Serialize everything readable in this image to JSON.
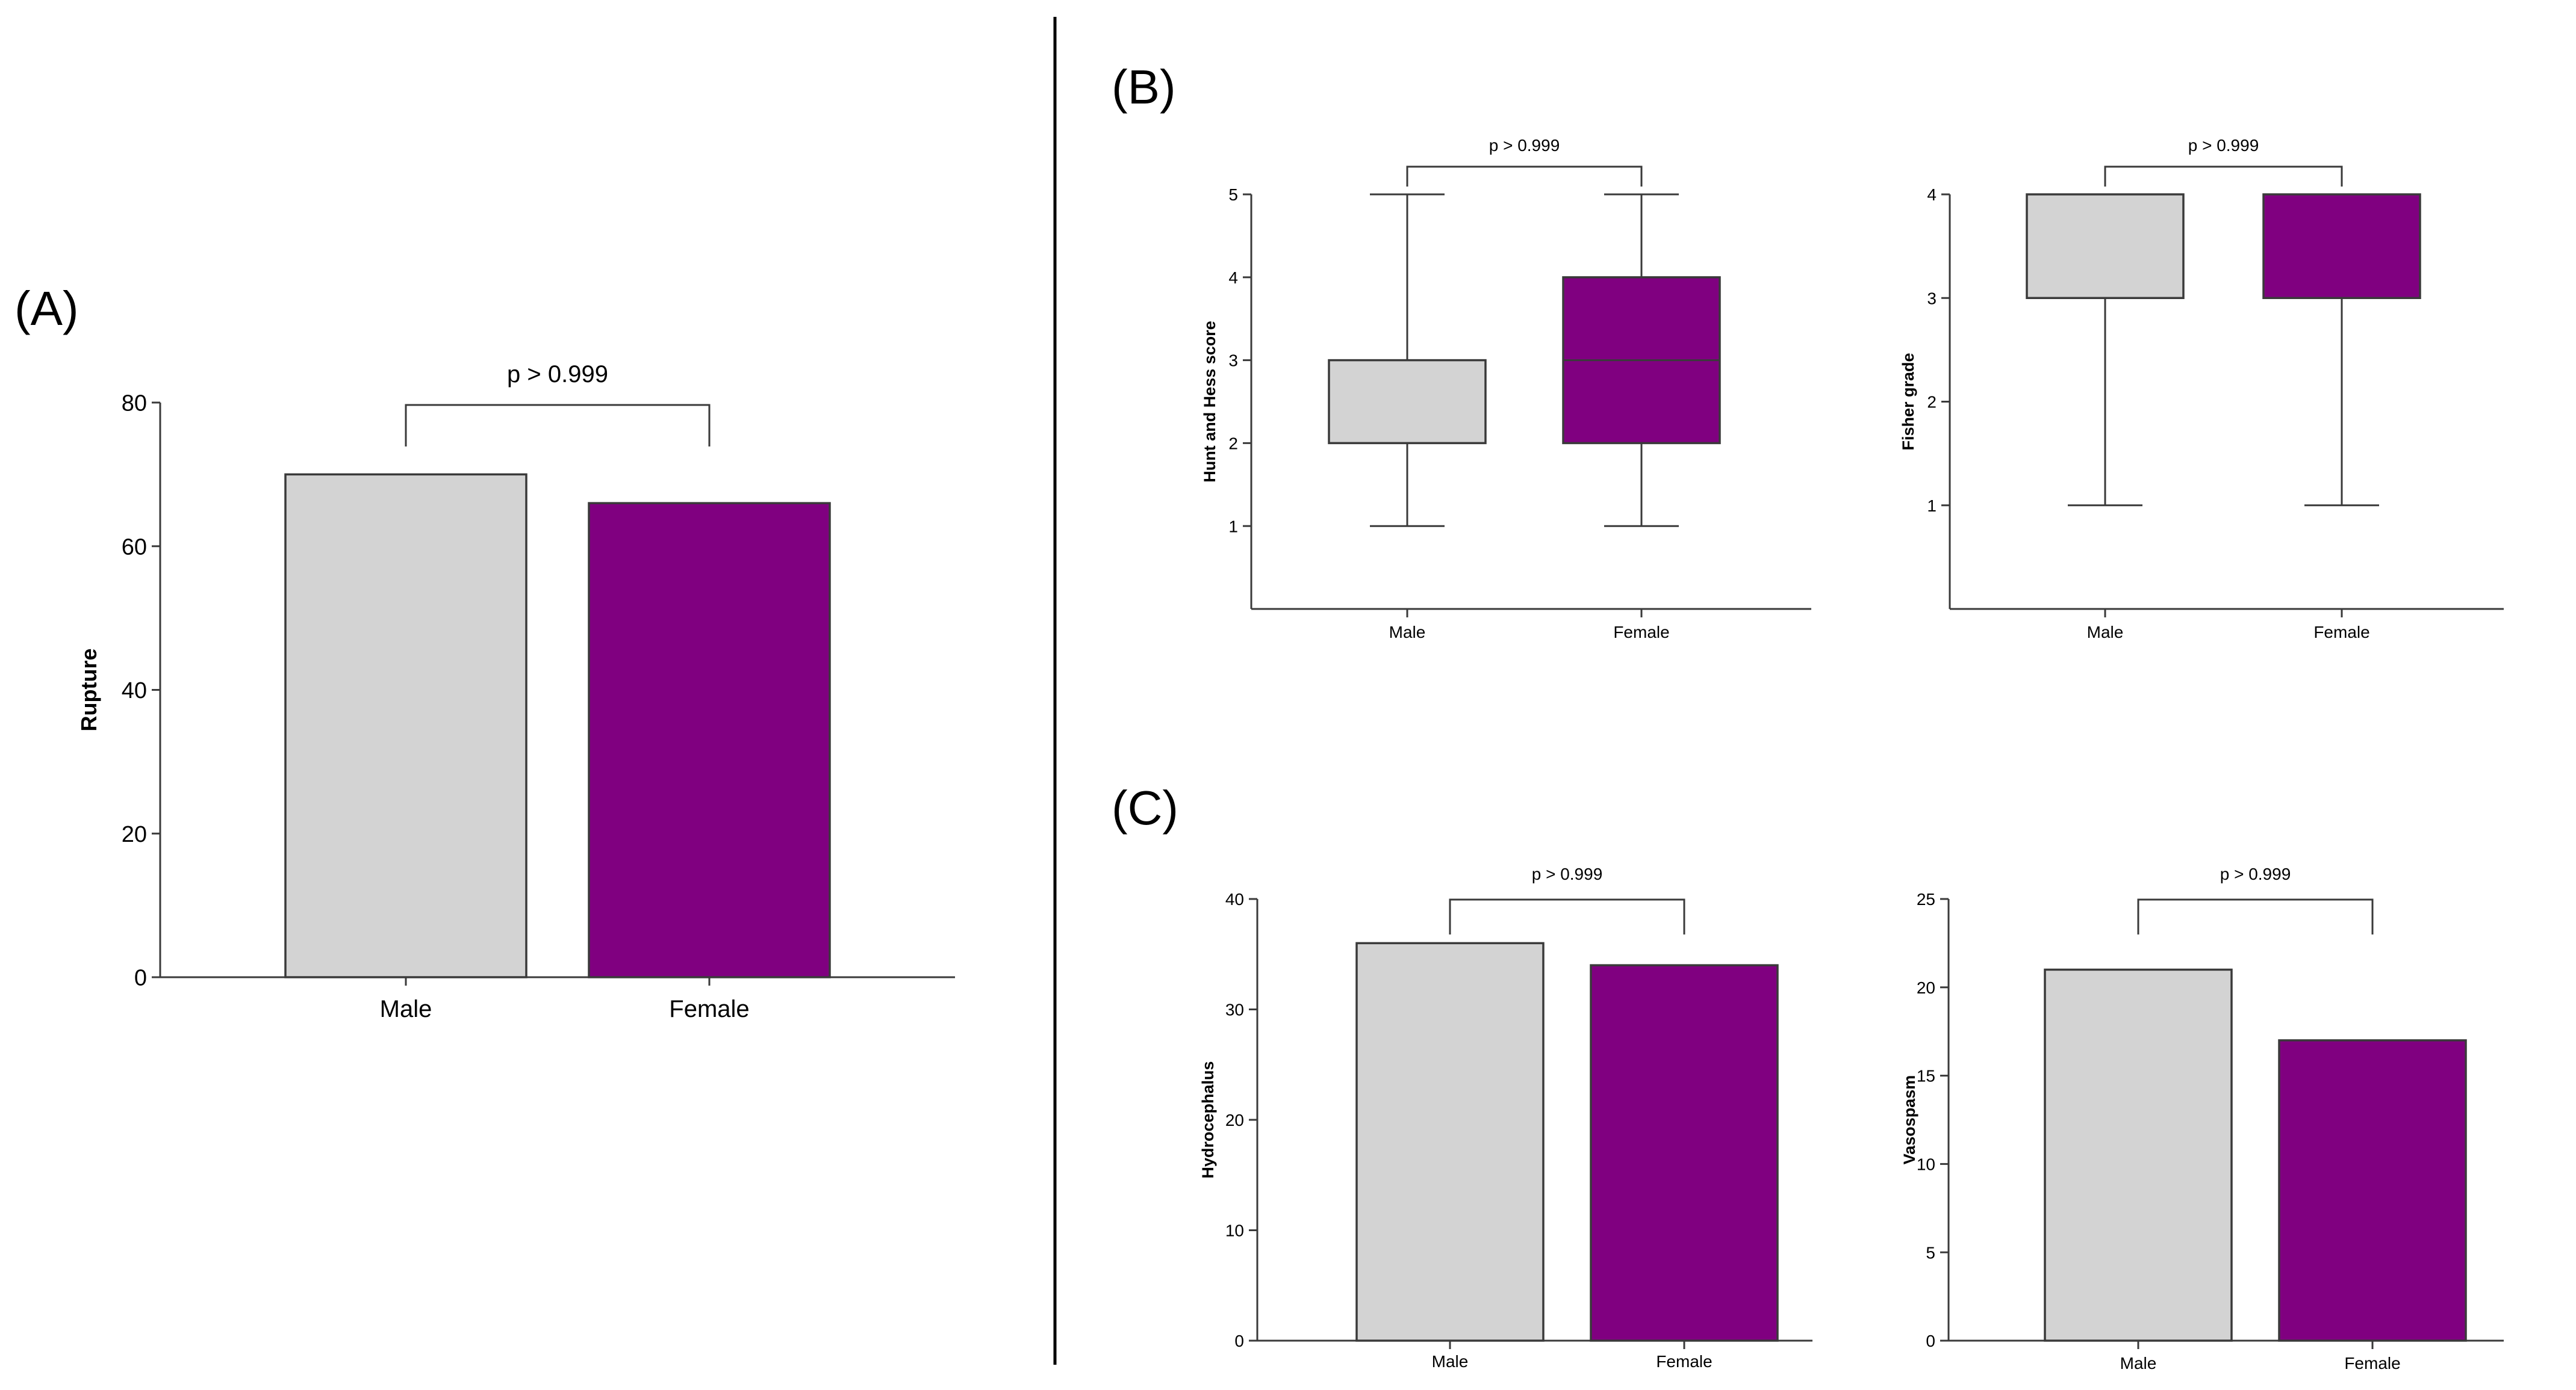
{
  "panel_labels": [
    "(A)",
    "(B)",
    "(C)"
  ],
  "colors": {
    "male": "#d3d3d3",
    "female": "#800080",
    "axis": "#3a3a3a",
    "text": "#000000"
  },
  "chart_data": [
    {
      "id": "A",
      "type": "bar",
      "title": "",
      "xlabel": "",
      "ylabel": "Rupture",
      "categories": [
        "Male",
        "Female"
      ],
      "values": [
        70,
        66
      ],
      "ylim": [
        0,
        80
      ],
      "yticks": [
        0,
        20,
        40,
        60,
        80
      ],
      "annotation": "p > 0.999",
      "annotation_y": 80,
      "grid": false
    },
    {
      "id": "B1",
      "type": "box",
      "title": "",
      "xlabel": "",
      "ylabel": "Hunt and Hess score",
      "categories": [
        "Male",
        "Female"
      ],
      "boxes": [
        {
          "min": 1,
          "q1": 2,
          "median": 2,
          "q3": 3,
          "max": 5
        },
        {
          "min": 1,
          "q1": 2,
          "median": 3,
          "q3": 4,
          "max": 5
        }
      ],
      "ylim": [
        0,
        5
      ],
      "yticks": [
        1,
        2,
        3,
        4,
        5
      ],
      "annotation": "p > 0.999",
      "annotation_y": 5.35,
      "grid": false
    },
    {
      "id": "B2",
      "type": "box",
      "title": "",
      "xlabel": "",
      "ylabel": "Fisher grade",
      "categories": [
        "Male",
        "Female"
      ],
      "boxes": [
        {
          "min": 1,
          "q1": 3,
          "median": 3,
          "q3": 4,
          "max": 4
        },
        {
          "min": 1,
          "q1": 3,
          "median": 3,
          "q3": 4,
          "max": 4
        }
      ],
      "ylim": [
        0,
        4
      ],
      "yticks": [
        1,
        2,
        3,
        4
      ],
      "annotation": "p > 0.999",
      "annotation_y": 4.28,
      "grid": false
    },
    {
      "id": "C1",
      "type": "bar",
      "title": "",
      "xlabel": "",
      "ylabel": "Hydrocephalus",
      "categories": [
        "Male",
        "Female"
      ],
      "values": [
        36,
        34
      ],
      "ylim": [
        0,
        40
      ],
      "yticks": [
        0,
        10,
        20,
        30,
        40
      ],
      "annotation": "p > 0.999",
      "annotation_y": 40,
      "grid": false
    },
    {
      "id": "C2",
      "type": "bar",
      "title": "",
      "xlabel": "",
      "ylabel": "Vasospasm",
      "categories": [
        "Male",
        "Female"
      ],
      "values": [
        21,
        17
      ],
      "ylim": [
        0,
        25
      ],
      "yticks": [
        0,
        5,
        10,
        15,
        20,
        25
      ],
      "annotation": "p > 0.999",
      "annotation_y": 25,
      "grid": false
    }
  ]
}
